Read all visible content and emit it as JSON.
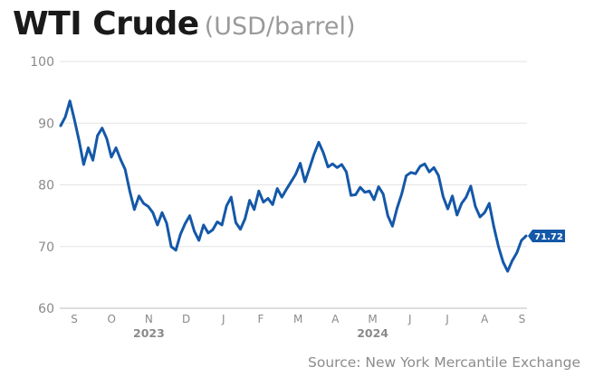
{
  "title": "WTI Crude",
  "unit": "(USD/barrel)",
  "source": "Source: New York Mercantile Exchange",
  "colors": {
    "line": "#1458a8",
    "grid": "#e3e3e3",
    "tick": "#8a8a8a",
    "axis": "#bdbdbd",
    "badge_bg": "#1458a8",
    "badge_text": "#ffffff"
  },
  "chart_data": {
    "type": "line",
    "x_unit": "weeks",
    "ylim": [
      60,
      100
    ],
    "y_ticks": [
      60,
      70,
      80,
      90,
      100
    ],
    "x_ticks": [
      "S",
      "O",
      "N",
      "D",
      "J",
      "F",
      "M",
      "A",
      "M",
      "J",
      "J",
      "A",
      "S"
    ],
    "year_labels": [
      {
        "label": "2023",
        "at_tick": 2
      },
      {
        "label": "2024",
        "at_tick": 8
      }
    ],
    "last_value_label": "71.72",
    "series": [
      {
        "values": [
          89.6,
          91.0,
          93.6,
          90.5,
          87.1,
          83.3,
          86.0,
          84.0,
          88.0,
          89.2,
          87.5,
          84.5,
          86.0,
          84.1,
          82.5,
          79.0,
          76.0,
          78.2,
          77.0,
          76.5,
          75.5,
          73.5,
          75.5,
          73.8,
          70.0,
          69.4,
          72.0,
          73.7,
          75.0,
          72.5,
          71.0,
          73.5,
          72.2,
          72.7,
          74.0,
          73.5,
          76.6,
          78.0,
          73.9,
          72.8,
          74.5,
          77.5,
          76.0,
          79.0,
          77.2,
          77.8,
          76.8,
          79.4,
          78.0,
          79.3,
          80.5,
          81.7,
          83.5,
          80.5,
          82.7,
          85.0,
          86.9,
          85.2,
          82.9,
          83.4,
          82.8,
          83.3,
          82.1,
          78.3,
          78.4,
          79.6,
          78.8,
          79.0,
          77.6,
          79.7,
          78.5,
          75.0,
          73.3,
          76.2,
          78.5,
          81.5,
          82.0,
          81.8,
          83.0,
          83.4,
          82.1,
          82.8,
          81.5,
          78.1,
          76.1,
          78.2,
          75.1,
          77.0,
          78.0,
          79.8,
          76.5,
          74.8,
          75.5,
          77.0,
          73.2,
          70.0,
          67.5,
          66.0,
          67.7,
          69.0,
          71.0,
          71.72
        ]
      }
    ]
  }
}
